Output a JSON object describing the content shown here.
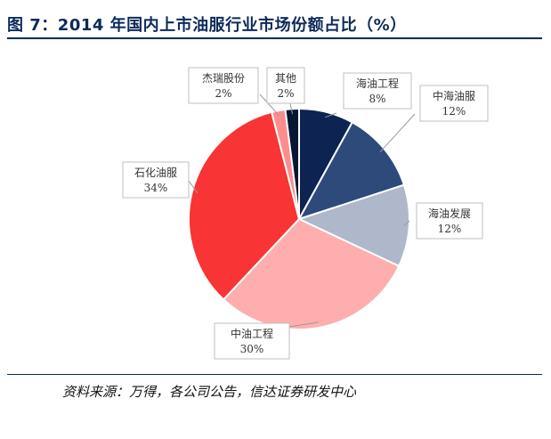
{
  "title": "图 7：2014 年国内上市油服行业市场份额占比（%）",
  "source": "资料来源：万得，各公司公告，信达证券研发中心",
  "chart_data": {
    "type": "pie",
    "title": "图 7：2014 年国内上市油服行业市场份额占比（%）",
    "slices": [
      {
        "label": "海油工程",
        "value": 8,
        "value_label": "8%",
        "color": "#0d2352"
      },
      {
        "label": "中海油服",
        "value": 12,
        "value_label": "12%",
        "color": "#2e4a7a"
      },
      {
        "label": "海油发展",
        "value": 12,
        "value_label": "12%",
        "color": "#aeb8ca"
      },
      {
        "label": "中油工程",
        "value": 30,
        "value_label": "30%",
        "color": "#ffaeae"
      },
      {
        "label": "石化油服",
        "value": 34,
        "value_label": "34%",
        "color": "#f83434"
      },
      {
        "label": "杰瑞股份",
        "value": 2,
        "value_label": "2%",
        "color": "#ff8c8c"
      },
      {
        "label": "其他",
        "value": 2,
        "value_label": "2%",
        "color": "#061633"
      }
    ]
  }
}
